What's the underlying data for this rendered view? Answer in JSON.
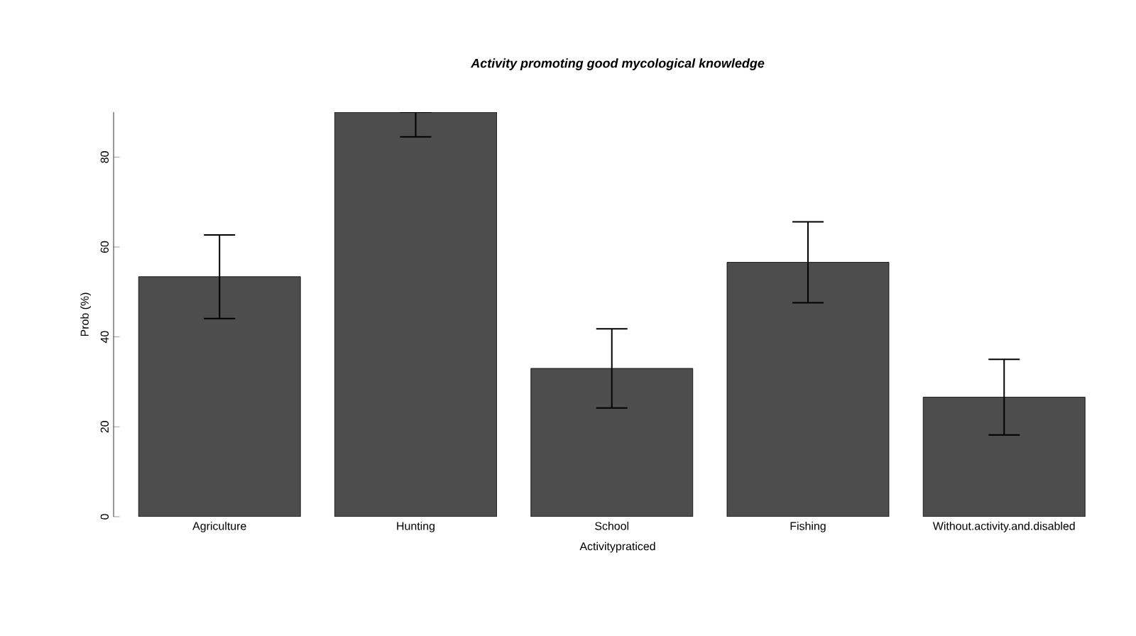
{
  "chart_data": {
    "type": "bar",
    "title": "Activity promoting good mycological knowledge",
    "xlabel": "Activitypraticed",
    "ylabel": "Prob (%)",
    "categories": [
      "Agriculture",
      "Hunting",
      "School",
      "Fishing",
      "Without.activity.and.disabled"
    ],
    "values": [
      53.4,
      90,
      33,
      56.6,
      26.6
    ],
    "errors": [
      9.3,
      [
        84.5,
        90
      ],
      8.8,
      9,
      8.4
    ],
    "color": "#4d4d4d",
    "ylim": [
      0,
      90
    ],
    "yticks": [
      0,
      20,
      40,
      60,
      80
    ],
    "grid": false
  }
}
